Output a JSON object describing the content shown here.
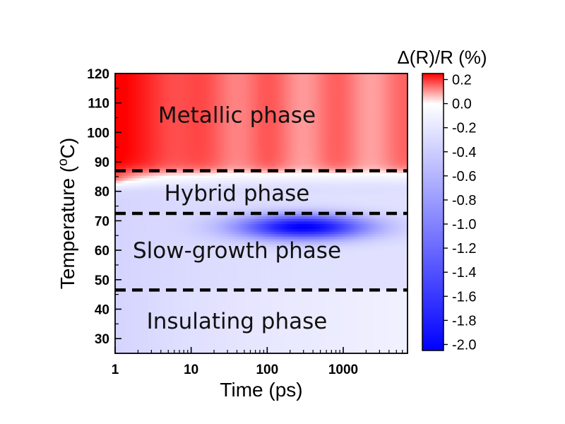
{
  "chart_data": {
    "type": "heatmap",
    "xlabel": "Time (ps)",
    "ylabel_main": "Temperature (",
    "ylabel_sup": "o",
    "ylabel_end": "C)",
    "xscale": "log",
    "xlim": [
      1,
      7000
    ],
    "ylim": [
      25,
      120
    ],
    "xticks": [
      1,
      10,
      100,
      1000
    ],
    "xtick_labels": [
      "1",
      "10",
      "100",
      "1000"
    ],
    "yticks": [
      30,
      40,
      50,
      60,
      70,
      80,
      90,
      100,
      110,
      120
    ],
    "ytick_labels": [
      "30",
      "40",
      "50",
      "60",
      "70",
      "80",
      "90",
      "100",
      "110",
      "120"
    ],
    "colorbar": {
      "title": "Δ(R)/R (%)",
      "range": [
        -2.05,
        0.25
      ],
      "ticks": [
        0.2,
        0.0,
        -0.2,
        -0.4,
        -0.6,
        -0.8,
        -1.0,
        -1.2,
        -1.4,
        -1.6,
        -1.8,
        -2.0
      ],
      "tick_labels": [
        "0.2",
        "0.0",
        "-0.2",
        "-0.4",
        "-0.6",
        "-0.8",
        "-1.0",
        "-1.2",
        "-1.4",
        "-1.6",
        "-1.8",
        "-2.0"
      ],
      "colors": {
        "max": "#ff0000",
        "zero": "#ffffff",
        "min": "#0000ff"
      }
    },
    "phase_boundaries": [
      87,
      72.5,
      46.5
    ],
    "phases": [
      {
        "name": "Metallic phase",
        "temperature_center": 106,
        "time_center": 40
      },
      {
        "name": "Hybrid phase",
        "temperature_center": 79.5,
        "time_center": 40
      },
      {
        "name": "Slow-growth phase",
        "temperature_center": 60,
        "time_center": 40
      },
      {
        "name": "Insulating phase",
        "temperature_center": 36,
        "time_center": 40
      }
    ],
    "features": {
      "red_max": {
        "temperature": 105,
        "time": 1.5,
        "value": 0.25
      },
      "blue_min": {
        "temperature": 68,
        "time": 300,
        "value": -1.8
      }
    }
  }
}
